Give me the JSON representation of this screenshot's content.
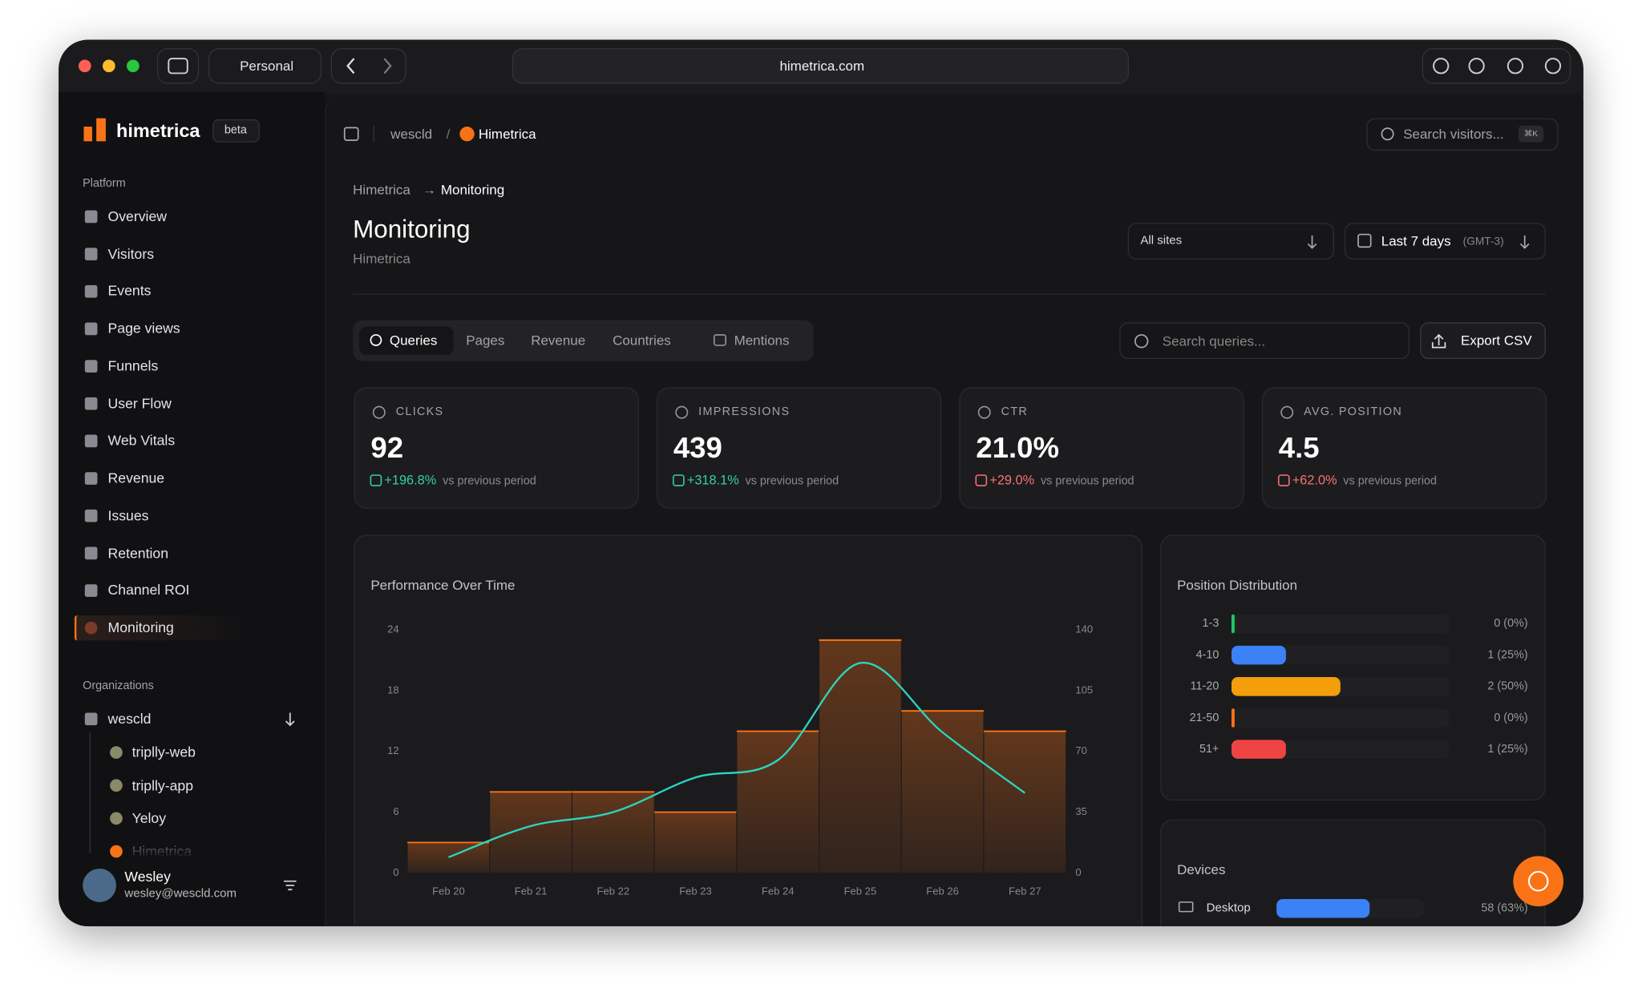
{
  "browser": {
    "profile": "Personal",
    "url": "himetrica.com"
  },
  "sidebar": {
    "brand": "himetrica",
    "badge": "beta",
    "platform_heading": "Platform",
    "nav": [
      "Overview",
      "Visitors",
      "Events",
      "Page views",
      "Funnels",
      "User Flow",
      "Web Vitals",
      "Revenue",
      "Issues",
      "Retention",
      "Channel ROI",
      "Monitoring"
    ],
    "nav_active": 11,
    "organizations_heading": "Organizations",
    "organization": "wescld",
    "projects": [
      "triplly-web",
      "triplly-app",
      "Yeloy",
      "Himetrica"
    ],
    "user": {
      "name": "Wesley",
      "email": "wesley@wescld.com"
    }
  },
  "topbar": {
    "workspace": "wescld",
    "separator": "/",
    "project": "Himetrica",
    "search_placeholder": "Search visitors...",
    "shortcut": "⌘K"
  },
  "header": {
    "breadcrumb": [
      "Himetrica",
      "Monitoring"
    ],
    "breadcrumb_arrow": "→",
    "title": "Monitoring",
    "subtitle": "Himetrica",
    "site_filter": "All sites",
    "date_range": "Last 7 days",
    "timezone": "(GMT-3)"
  },
  "tabs": [
    "Queries",
    "Pages",
    "Revenue",
    "Countries",
    "Mentions"
  ],
  "tabs_active": 0,
  "query_search_placeholder": "Search queries...",
  "export_button": "Export CSV",
  "stats": [
    {
      "label": "CLICKS",
      "value": "92",
      "change": "+196.8%",
      "note": "vs previous period",
      "color": "#34d399"
    },
    {
      "label": "IMPRESSIONS",
      "value": "439",
      "change": "+318.1%",
      "note": "vs previous period",
      "color": "#34d399"
    },
    {
      "label": "CTR",
      "value": "21.0%",
      "change": "+29.0%",
      "note": "vs previous period",
      "color": "#f87171"
    },
    {
      "label": "AVG. POSITION",
      "value": "4.5",
      "change": "+62.0%",
      "note": "vs previous period",
      "color": "#f87171"
    }
  ],
  "chart_data": [
    {
      "type": "bar",
      "title": "Performance Over Time",
      "categories": [
        "Feb 20",
        "Feb 21",
        "Feb 22",
        "Feb 23",
        "Feb 24",
        "Feb 25",
        "Feb 26",
        "Feb 27"
      ],
      "series": [
        {
          "type": "bar",
          "color": "#f97316",
          "values": [
            3,
            8,
            8,
            6,
            14,
            23,
            16,
            14
          ]
        },
        {
          "type": "line",
          "color": "#2dd4bf",
          "axis": "y2",
          "values": [
            9,
            27,
            35,
            55,
            65,
            121,
            81,
            46
          ]
        }
      ],
      "ylim": [
        0,
        24
      ],
      "yticks": [
        0,
        6,
        12,
        18,
        24
      ],
      "y2lim": [
        0,
        140
      ],
      "y2ticks": [
        0,
        35,
        70,
        105,
        140
      ]
    },
    {
      "type": "hbar",
      "title": "Position Distribution",
      "categories": [
        "1-3",
        "4-10",
        "11-20",
        "21-50",
        "51+"
      ],
      "values": [
        0,
        1,
        2,
        0,
        1
      ],
      "value_labels": [
        "0 (0%)",
        "1 (25%)",
        "2 (50%)",
        "0 (0%)",
        "1 (25%)"
      ],
      "colors": [
        "#22c55e",
        "#3b82f6",
        "#f59e0b",
        "#f97316",
        "#ef4444"
      ],
      "xlim": [
        0,
        4
      ]
    },
    {
      "type": "hbar",
      "title": "Devices",
      "categories": [
        "Desktop"
      ],
      "values": [
        58
      ],
      "value_labels": [
        "58 (63%)"
      ],
      "colors": [
        "#3b82f6"
      ],
      "xlim": [
        0,
        92
      ]
    }
  ]
}
